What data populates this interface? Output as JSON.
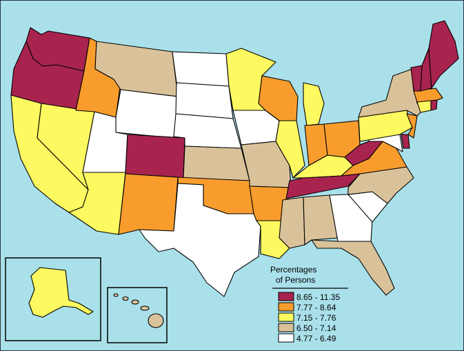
{
  "colors": {
    "ocean": "#a9e0ea",
    "land_border": "#000000",
    "bin_1": "#a8244f",
    "bin_2": "#f89d2d",
    "bin_3": "#fdf960",
    "bin_4": "#d9c29a",
    "bin_5": "#ffffff"
  },
  "legend": {
    "title_line1": "Percentages",
    "title_line2": "of Persons",
    "bins": [
      {
        "label": "8.65 - 11.35",
        "color": "#a8244f"
      },
      {
        "label": "7.77 - 8.64",
        "color": "#f89d2d"
      },
      {
        "label": "7.15 - 7.76",
        "color": "#fdf960"
      },
      {
        "label": "6.50 - 7.14",
        "color": "#d9c29a"
      },
      {
        "label": "4.77 - 6.49",
        "color": "#ffffff"
      }
    ]
  },
  "states": {
    "WA": 1,
    "OR": 1,
    "CO": 1,
    "TN": 1,
    "WV": 1,
    "VT": 1,
    "NH": 1,
    "ME": 1,
    "RI": 1,
    "DE": 1,
    "ID": 2,
    "NM": 2,
    "OK": 2,
    "AR": 2,
    "WI": 2,
    "IN": 2,
    "OH": 2,
    "VA": 2,
    "NJ": 2,
    "MA": 2,
    "CA": 3,
    "NV": 3,
    "AZ": 3,
    "MN": 3,
    "MI": 3,
    "IL": 3,
    "KY": 3,
    "LA": 3,
    "PA": 3,
    "CT": 3,
    "AK": 3,
    "MT": 4,
    "KS": 4,
    "MO": 4,
    "MS": 4,
    "AL": 4,
    "FL": 4,
    "NC": 4,
    "NY": 4,
    "HI": 4,
    "ND": 5,
    "SD": 5,
    "NE": 5,
    "WY": 5,
    "UT": 5,
    "TX": 5,
    "IA": 5,
    "GA": 5,
    "SC": 5,
    "MD": 5
  }
}
